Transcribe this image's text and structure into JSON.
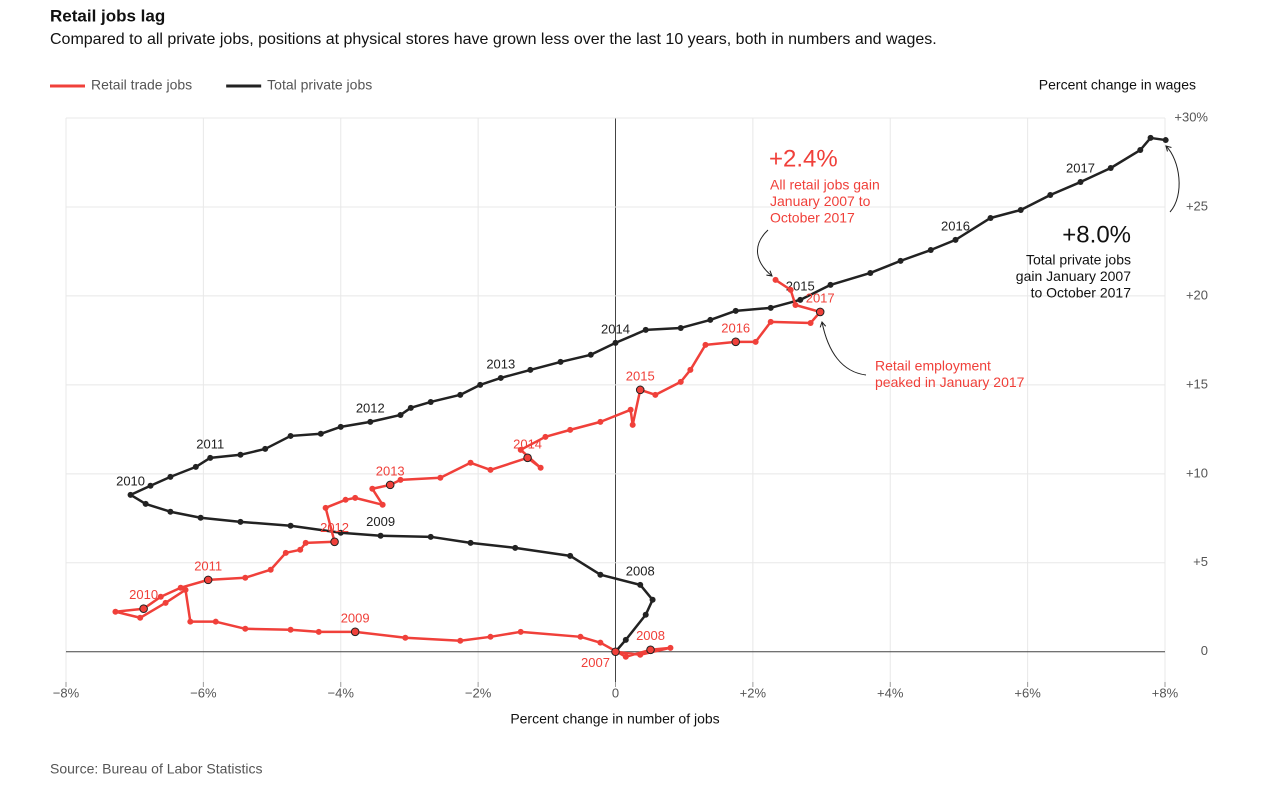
{
  "chart_data": {
    "type": "connected-scatter",
    "title": "Retail jobs lag",
    "subtitle": "Compared to all private jobs, positions at physical stores have grown less over the last 10 years, both in numbers and wages.",
    "x_label": "Percent change in number of jobs",
    "y_label": "Percent change in wages",
    "source": "Source: Bureau of Labor Statistics",
    "legend": "top-left",
    "grid": true,
    "xlim": [
      -8,
      8
    ],
    "ylim": [
      -1.7,
      30
    ],
    "xticks": [
      {
        "value": -8,
        "label": "−8%"
      },
      {
        "value": -6,
        "label": "−6%"
      },
      {
        "value": -4,
        "label": "−4%"
      },
      {
        "value": -2,
        "label": "−2%"
      },
      0,
      {
        "value": 2,
        "label": "+2%"
      },
      {
        "value": 4,
        "label": "+4%"
      },
      {
        "value": 6,
        "label": "+6%"
      },
      {
        "value": 8,
        "label": "+8%"
      }
    ],
    "yticks": [
      0,
      {
        "value": 5,
        "label": "+5"
      },
      {
        "value": 10,
        "label": "+10"
      },
      {
        "value": 15,
        "label": "+15"
      },
      {
        "value": 20,
        "label": "+20"
      },
      {
        "value": 25,
        "label": "+25"
      },
      {
        "value": 30,
        "label": "+30%"
      }
    ],
    "series": [
      {
        "name": "Total private jobs",
        "color": "#222222",
        "x": [
          0,
          0.15,
          0.44,
          0.54,
          0.36,
          -0.22,
          -0.66,
          -1.46,
          -2.11,
          -2.69,
          -3.42,
          -4.0,
          -4.73,
          -5.46,
          -6.04,
          -6.48,
          -6.84,
          -7.06,
          -6.77,
          -6.48,
          -6.11,
          -5.9,
          -5.46,
          -5.1,
          -4.73,
          -4.29,
          -4.0,
          -3.57,
          -3.13,
          -2.98,
          -2.69,
          -2.26,
          -1.97,
          -1.67,
          -1.24,
          -0.8,
          -0.36,
          0,
          0.44,
          0.95,
          1.38,
          1.75,
          2.26,
          2.69,
          3.13,
          3.71,
          4.15,
          4.59,
          4.95,
          5.46,
          5.9,
          6.33,
          6.77,
          7.21,
          7.64,
          7.79,
          8.01
        ],
        "values": [
          0,
          0.67,
          2.08,
          2.92,
          3.76,
          4.33,
          5.39,
          5.84,
          6.12,
          6.46,
          6.52,
          6.69,
          7.08,
          7.3,
          7.53,
          7.87,
          8.31,
          8.82,
          9.33,
          9.83,
          10.39,
          10.9,
          11.07,
          11.4,
          12.13,
          12.25,
          12.64,
          12.92,
          13.31,
          13.71,
          14.04,
          14.44,
          15.0,
          15.39,
          15.84,
          16.29,
          16.69,
          17.36,
          18.09,
          18.2,
          18.65,
          19.16,
          19.33,
          19.78,
          20.62,
          21.29,
          21.97,
          22.58,
          23.15,
          24.38,
          24.83,
          25.67,
          26.4,
          27.19,
          28.2,
          28.88,
          28.76
        ],
        "point_labels": [
          null,
          null,
          null,
          null,
          "2008",
          null,
          null,
          null,
          null,
          null,
          "2009",
          null,
          null,
          null,
          null,
          null,
          null,
          "2010",
          null,
          null,
          null,
          "2011",
          null,
          null,
          null,
          null,
          null,
          "2012",
          null,
          null,
          null,
          null,
          null,
          "2013",
          null,
          null,
          null,
          "2014",
          null,
          null,
          null,
          null,
          null,
          "2015",
          null,
          null,
          null,
          null,
          "2016",
          null,
          null,
          null,
          "2017",
          null,
          null,
          null,
          null
        ]
      },
      {
        "name": "Retail trade jobs",
        "color": "#f0403a",
        "x": [
          0,
          0.36,
          0.8,
          0.51,
          0.15,
          -0.22,
          -0.51,
          -1.38,
          -1.82,
          -2.26,
          -3.06,
          -3.79,
          -4.32,
          -4.73,
          -5.39,
          -5.82,
          -6.19,
          -6.26,
          -6.55,
          -6.92,
          -7.28,
          -6.87,
          -6.62,
          -6.33,
          -5.93,
          -5.39,
          -5.02,
          -4.8,
          -4.59,
          -4.51,
          -4.09,
          -4.22,
          -3.93,
          -3.79,
          -3.39,
          -3.54,
          -3.28,
          -3.13,
          -2.55,
          -2.11,
          -1.82,
          -1.28,
          -1.09,
          -1.38,
          -1.02,
          -0.66,
          -0.22,
          0.22,
          0.25,
          0.36,
          0.58,
          0.95,
          1.09,
          1.31,
          1.75,
          2.04,
          2.26,
          2.84,
          2.98,
          2.62,
          2.55,
          2.33
        ],
        "values": [
          0,
          -0.17,
          0.22,
          0.11,
          -0.28,
          0.51,
          0.84,
          1.12,
          0.84,
          0.62,
          0.79,
          1.12,
          1.12,
          1.24,
          1.29,
          1.69,
          1.69,
          3.48,
          2.75,
          1.91,
          2.25,
          2.42,
          3.09,
          3.6,
          4.04,
          4.16,
          4.61,
          5.56,
          5.73,
          6.12,
          6.18,
          8.09,
          8.54,
          8.65,
          8.26,
          9.16,
          9.38,
          9.66,
          9.78,
          10.62,
          10.22,
          10.9,
          10.34,
          11.35,
          12.08,
          12.47,
          12.92,
          13.6,
          12.75,
          14.72,
          14.44,
          15.17,
          15.84,
          17.25,
          17.42,
          17.42,
          18.54,
          18.48,
          19.1,
          19.49,
          20.34,
          20.9
        ],
        "point_labels": [
          "2007",
          null,
          null,
          "2008",
          null,
          null,
          null,
          null,
          null,
          null,
          null,
          "2009",
          null,
          null,
          null,
          null,
          null,
          null,
          null,
          null,
          null,
          "2010",
          null,
          null,
          "2011",
          null,
          null,
          null,
          null,
          null,
          "2012",
          null,
          null,
          null,
          null,
          null,
          "2013",
          null,
          null,
          null,
          null,
          "2014",
          null,
          null,
          null,
          null,
          null,
          null,
          null,
          "2015",
          null,
          null,
          null,
          null,
          "2016",
          null,
          null,
          null,
          "2017",
          null,
          null,
          null
        ]
      }
    ],
    "annotations": {
      "retail_gain": {
        "value": "+2.4%",
        "lines": [
          "All retail jobs gain",
          "January 2007 to",
          "October 2017"
        ]
      },
      "total_gain": {
        "value": "+8.0%",
        "lines": [
          "Total private jobs",
          "gain January 2007",
          "to October 2017"
        ]
      },
      "retail_peak": {
        "lines": [
          "Retail employment",
          "peaked in January 2017"
        ]
      }
    }
  }
}
